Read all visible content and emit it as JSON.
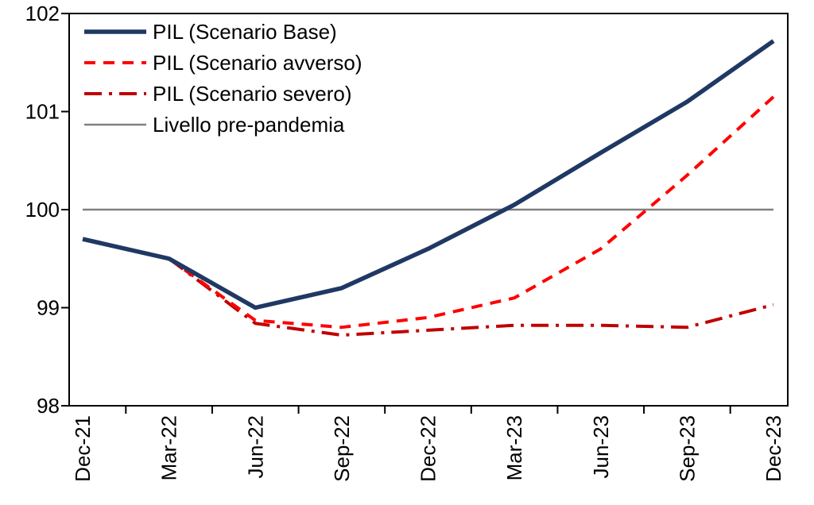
{
  "chart_data": {
    "type": "line",
    "title": "",
    "xlabel": "",
    "ylabel": "",
    "categories": [
      "Dec-21",
      "Mar-22",
      "Jun-22",
      "Sep-22",
      "Dec-22",
      "Mar-23",
      "Jun-23",
      "Sep-23",
      "Dec-23"
    ],
    "ylim": [
      98,
      102
    ],
    "yticks": [
      "98",
      "99",
      "100",
      "101",
      "102"
    ],
    "grid": false,
    "legend_position": "top-left",
    "series": [
      {
        "name": "PIL (Scenario Base)",
        "color": "#1f3864",
        "style": "solid-thick",
        "values": [
          99.7,
          99.5,
          99.0,
          99.2,
          99.6,
          100.05,
          100.58,
          101.1,
          101.72
        ]
      },
      {
        "name": "PIL (Scenario avverso)",
        "color": "#ff0000",
        "style": "dashed",
        "values": [
          null,
          99.5,
          98.87,
          98.8,
          98.9,
          99.1,
          99.6,
          100.35,
          101.15
        ]
      },
      {
        "name": "PIL (Scenario severo)",
        "color": "#c00000",
        "style": "dash-dot",
        "values": [
          null,
          99.5,
          98.84,
          98.72,
          98.77,
          98.82,
          98.82,
          98.8,
          99.03
        ]
      },
      {
        "name": "Livello pre-pandemia",
        "color": "#808080",
        "style": "solid-thin",
        "values": [
          100,
          100,
          100,
          100,
          100,
          100,
          100,
          100,
          100
        ]
      }
    ]
  }
}
